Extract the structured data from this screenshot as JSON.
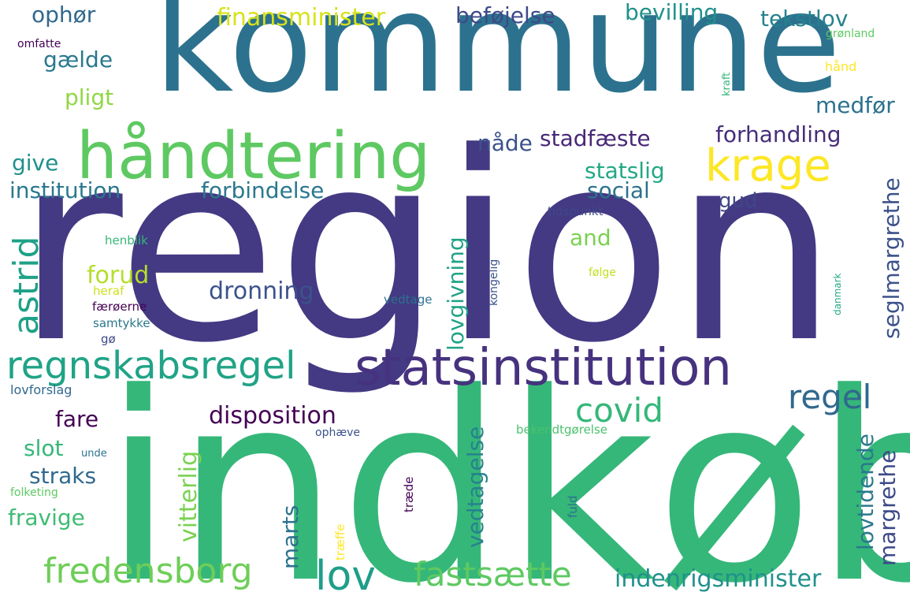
{
  "colors": {
    "background": "#ffffff",
    "deep_purple": "#440154",
    "indigo": "#443983",
    "blue_slate": "#31688e",
    "teal": "#21918c",
    "green_teal": "#35b779",
    "green": "#5ec962",
    "lime": "#90d743",
    "light_lime": "#c2df23",
    "yellow": "#fde725"
  },
  "words": [
    {
      "id": "region",
      "text": "region",
      "color": "#443983"
    },
    {
      "id": "indkob",
      "text": "indkøb",
      "color": "#35b779"
    },
    {
      "id": "kommune",
      "text": "kommune",
      "color": "#2c728e"
    },
    {
      "id": "handtering",
      "text": "håndtering",
      "color": "#5ec962"
    },
    {
      "id": "statsinstitution",
      "text": "statsinstitution",
      "color": "#46327e"
    },
    {
      "id": "regnskabsregel",
      "text": "regnskabsregel",
      "color": "#20a386"
    },
    {
      "id": "krage",
      "text": "krage",
      "color": "#fde725"
    },
    {
      "id": "lov",
      "text": "lov",
      "color": "#1f9e89"
    },
    {
      "id": "fredensborg",
      "text": "fredensborg",
      "color": "#6ece58"
    },
    {
      "id": "fastsaette",
      "text": "fastsætte",
      "color": "#5ec962"
    },
    {
      "id": "covid",
      "text": "covid",
      "color": "#35b779"
    },
    {
      "id": "regel",
      "text": "regel",
      "color": "#31688e"
    },
    {
      "id": "indenrigsminister",
      "text": "indenrigsminister",
      "color": "#21918c"
    },
    {
      "id": "finansminister",
      "text": "finansminister",
      "color": "#d8e219"
    },
    {
      "id": "disposition",
      "text": "disposition",
      "color": "#440154"
    },
    {
      "id": "dronning",
      "text": "dronning",
      "color": "#3b528b"
    },
    {
      "id": "institution",
      "text": "institution",
      "color": "#2a788e"
    },
    {
      "id": "forbindelse",
      "text": "forbindelse",
      "color": "#2a788e"
    },
    {
      "id": "stadfaeste",
      "text": "stadfæste",
      "color": "#482878"
    },
    {
      "id": "forhandling",
      "text": "forhandling",
      "color": "#472d7b"
    },
    {
      "id": "befojelse",
      "text": "beføjelse",
      "color": "#3e4989"
    },
    {
      "id": "bevilling",
      "text": "bevilling",
      "color": "#21918c"
    },
    {
      "id": "tekstlov",
      "text": "tekstlov",
      "color": "#26828e"
    },
    {
      "id": "medfor",
      "text": "medfør",
      "color": "#2c728e"
    },
    {
      "id": "ophor",
      "text": "ophør",
      "color": "#31688e"
    },
    {
      "id": "gaelde",
      "text": "gælde",
      "color": "#2a788e"
    },
    {
      "id": "pligt",
      "text": "pligt",
      "color": "#90d743"
    },
    {
      "id": "give",
      "text": "give",
      "color": "#21918c"
    },
    {
      "id": "nade",
      "text": "nåde",
      "color": "#3b528b"
    },
    {
      "id": "statslig",
      "text": "statslig",
      "color": "#22a884"
    },
    {
      "id": "social",
      "text": "social",
      "color": "#2c728e"
    },
    {
      "id": "gud",
      "text": "gud",
      "color": "#404688"
    },
    {
      "id": "and",
      "text": "and",
      "color": "#7ad151"
    },
    {
      "id": "forud",
      "text": "forud",
      "color": "#b5de2b"
    },
    {
      "id": "fare",
      "text": "fare",
      "color": "#440154"
    },
    {
      "id": "slot",
      "text": "slot",
      "color": "#35b779"
    },
    {
      "id": "straks",
      "text": "straks",
      "color": "#31688e"
    },
    {
      "id": "fravige",
      "text": "fravige",
      "color": "#3fbc73"
    },
    {
      "id": "henblik",
      "text": "henblik",
      "color": "#35b779"
    },
    {
      "id": "heraf",
      "text": "heraf",
      "color": "#cde11d"
    },
    {
      "id": "faeroerne",
      "text": "færøerne",
      "color": "#440154"
    },
    {
      "id": "samtykke",
      "text": "samtykke",
      "color": "#2a788e"
    },
    {
      "id": "go",
      "text": "gø",
      "color": "#3e4989"
    },
    {
      "id": "lovforslag",
      "text": "lovforslag",
      "color": "#31688e"
    },
    {
      "id": "unde",
      "text": "unde",
      "color": "#2c728e"
    },
    {
      "id": "folketing",
      "text": "folketing",
      "color": "#5ec962"
    },
    {
      "id": "omfatte",
      "text": "omfatte",
      "color": "#440154"
    },
    {
      "id": "gronland",
      "text": "grønland",
      "color": "#5ec962"
    },
    {
      "id": "hand",
      "text": "hånd",
      "color": "#fde725"
    },
    {
      "id": "tidspunkt",
      "text": "tidspunkt",
      "color": "#3e4989"
    },
    {
      "id": "folge",
      "text": "følge",
      "color": "#c2df23"
    },
    {
      "id": "vedtage",
      "text": "vedtage",
      "color": "#2c728e"
    },
    {
      "id": "ophaeve",
      "text": "ophæve",
      "color": "#3b528b"
    },
    {
      "id": "bekendtgorelse",
      "text": "bekendtgørelse",
      "color": "#4ac16d"
    },
    {
      "id": "astrid",
      "text": "astrid",
      "color": "#1fa187"
    },
    {
      "id": "lovgivning",
      "text": "lovgivning",
      "color": "#20a386"
    },
    {
      "id": "seglmargrethe",
      "text": "seglmargrethe",
      "color": "#3b528b"
    },
    {
      "id": "vitterlig",
      "text": "vitterlig",
      "color": "#7ad151"
    },
    {
      "id": "marts",
      "text": "marts",
      "color": "#2c728e"
    },
    {
      "id": "vedtagelse",
      "text": "vedtagelse",
      "color": "#26828e"
    },
    {
      "id": "lovtidende",
      "text": "lovtidende",
      "color": "#2a788e"
    },
    {
      "id": "margrethe",
      "text": "margrethe",
      "color": "#3e4989"
    },
    {
      "id": "kraft",
      "text": "kraft",
      "color": "#35b779"
    },
    {
      "id": "kongelig",
      "text": "kongelig",
      "color": "#3b528b"
    },
    {
      "id": "danmark",
      "text": "danmark",
      "color": "#22a884"
    },
    {
      "id": "fuld",
      "text": "fuld",
      "color": "#2c728e"
    },
    {
      "id": "traede",
      "text": "træde",
      "color": "#440154"
    },
    {
      "id": "traeffe",
      "text": "træffe",
      "color": "#fde725"
    }
  ]
}
